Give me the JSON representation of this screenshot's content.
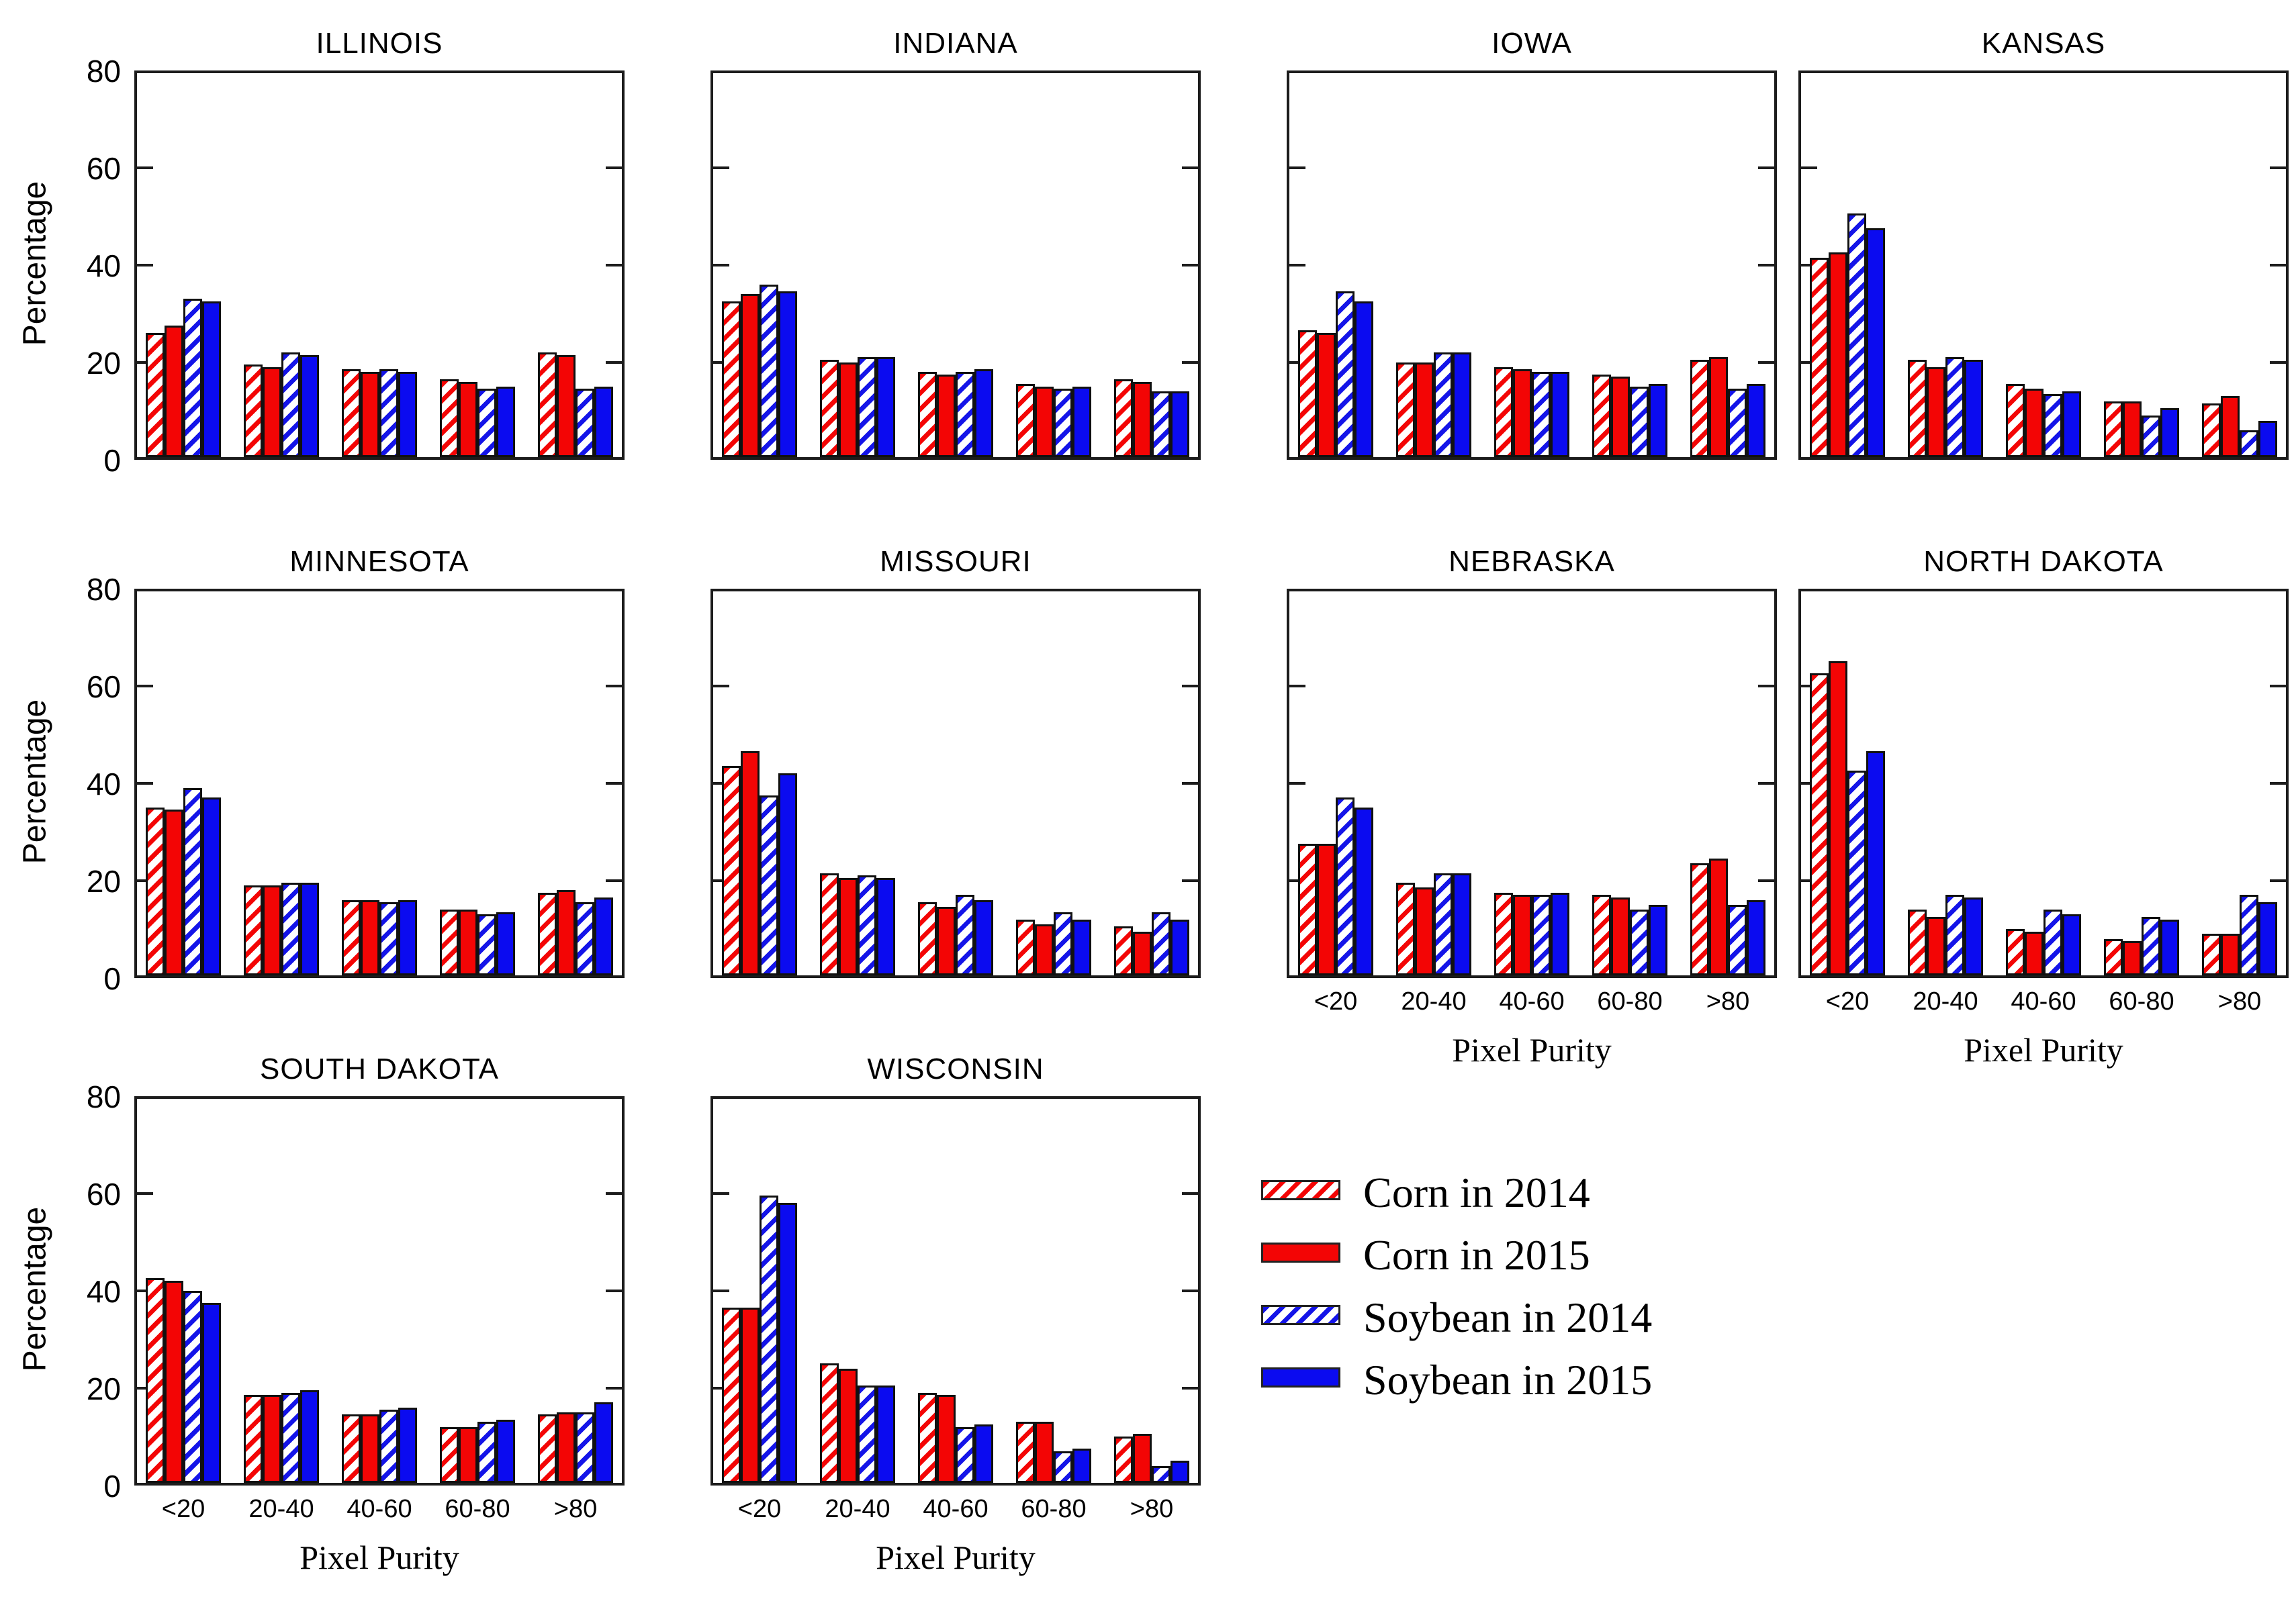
{
  "figure": {
    "ylabel": "Percentage",
    "xlabel": "Pixel Purity",
    "ytick_labels": [
      "0",
      "20",
      "40",
      "60",
      "80"
    ],
    "categories": [
      "<20",
      "20-40",
      "40-60",
      "60-80",
      ">80"
    ]
  },
  "legend": {
    "entries": [
      {
        "label": "Corn in 2014",
        "style": "hatch-red"
      },
      {
        "label": "Corn in 2015",
        "style": "solid-red"
      },
      {
        "label": "Soybean in 2014",
        "style": "hatch-blue"
      },
      {
        "label": "Soybean in 2015",
        "style": "solid-blue"
      }
    ]
  },
  "theme": {
    "corn_color": "#f30505",
    "soybean_color": "#0b0bf0",
    "bar_edge": "#111111",
    "hatch_background": "#ffffff"
  },
  "chart_data": [
    {
      "type": "bar",
      "title": "ILLINOIS",
      "ylim": [
        0,
        80
      ],
      "yticks": [
        0,
        20,
        40,
        60,
        80
      ],
      "categories": [
        "<20",
        "20-40",
        "40-60",
        "60-80",
        ">80"
      ],
      "series": [
        {
          "name": "Corn in 2014",
          "values": [
            25.5,
            19,
            18,
            16,
            21.5
          ]
        },
        {
          "name": "Corn in 2015",
          "values": [
            27,
            18.5,
            17.5,
            15.5,
            21
          ]
        },
        {
          "name": "Soybean in 2014",
          "values": [
            32.5,
            21.5,
            18,
            14,
            14
          ]
        },
        {
          "name": "Soybean in 2015",
          "values": [
            32,
            21,
            17.5,
            14.5,
            14.5
          ]
        }
      ]
    },
    {
      "type": "bar",
      "title": "INDIANA",
      "ylim": [
        0,
        80
      ],
      "yticks": [
        0,
        20,
        40,
        60,
        80
      ],
      "categories": [
        "<20",
        "20-40",
        "40-60",
        "60-80",
        ">80"
      ],
      "series": [
        {
          "name": "Corn in 2014",
          "values": [
            32,
            20,
            17.5,
            15,
            16
          ]
        },
        {
          "name": "Corn in 2015",
          "values": [
            33.5,
            19.5,
            17,
            14.5,
            15.5
          ]
        },
        {
          "name": "Soybean in 2014",
          "values": [
            35.5,
            20.5,
            17.5,
            14,
            13.5
          ]
        },
        {
          "name": "Soybean in 2015",
          "values": [
            34,
            20.5,
            18,
            14.5,
            13.5
          ]
        }
      ]
    },
    {
      "type": "bar",
      "title": "IOWA",
      "ylim": [
        0,
        80
      ],
      "yticks": [
        0,
        20,
        40,
        60,
        80
      ],
      "categories": [
        "<20",
        "20-40",
        "40-60",
        "60-80",
        ">80"
      ],
      "series": [
        {
          "name": "Corn in 2014",
          "values": [
            26,
            19.5,
            18.5,
            17,
            20
          ]
        },
        {
          "name": "Corn in 2015",
          "values": [
            25.5,
            19.5,
            18,
            16.5,
            20.5
          ]
        },
        {
          "name": "Soybean in 2014",
          "values": [
            34,
            21.5,
            17.5,
            14.5,
            14
          ]
        },
        {
          "name": "Soybean in 2015",
          "values": [
            32,
            21.5,
            17.5,
            15,
            15
          ]
        }
      ]
    },
    {
      "type": "bar",
      "title": "KANSAS",
      "ylim": [
        0,
        80
      ],
      "yticks": [
        0,
        20,
        40,
        60,
        80
      ],
      "categories": [
        "<20",
        "20-40",
        "40-60",
        "60-80",
        ">80"
      ],
      "series": [
        {
          "name": "Corn in 2014",
          "values": [
            41,
            20,
            15,
            11.5,
            11
          ]
        },
        {
          "name": "Corn in 2015",
          "values": [
            42,
            18.5,
            14,
            11.5,
            12.5
          ]
        },
        {
          "name": "Soybean in 2014",
          "values": [
            50,
            20.5,
            13,
            8.5,
            5.5
          ]
        },
        {
          "name": "Soybean in 2015",
          "values": [
            47,
            20,
            13.5,
            10,
            7.5
          ]
        }
      ]
    },
    {
      "type": "bar",
      "title": "MINNESOTA",
      "ylim": [
        0,
        80
      ],
      "yticks": [
        0,
        20,
        40,
        60,
        80
      ],
      "categories": [
        "<20",
        "20-40",
        "40-60",
        "60-80",
        ">80"
      ],
      "series": [
        {
          "name": "Corn in 2014",
          "values": [
            34.5,
            18.5,
            15.5,
            13.5,
            17
          ]
        },
        {
          "name": "Corn in 2015",
          "values": [
            34,
            18.5,
            15.5,
            13.5,
            17.5
          ]
        },
        {
          "name": "Soybean in 2014",
          "values": [
            38.5,
            19,
            15,
            12.5,
            15
          ]
        },
        {
          "name": "Soybean in 2015",
          "values": [
            36.5,
            19,
            15.5,
            13,
            16
          ]
        }
      ]
    },
    {
      "type": "bar",
      "title": "MISSOURI",
      "ylim": [
        0,
        80
      ],
      "yticks": [
        0,
        20,
        40,
        60,
        80
      ],
      "categories": [
        "<20",
        "20-40",
        "40-60",
        "60-80",
        ">80"
      ],
      "series": [
        {
          "name": "Corn in 2014",
          "values": [
            43,
            21,
            15,
            11.5,
            10
          ]
        },
        {
          "name": "Corn in 2015",
          "values": [
            46,
            20,
            14,
            10.5,
            9
          ]
        },
        {
          "name": "Soybean in 2014",
          "values": [
            37,
            20.5,
            16.5,
            13,
            13
          ]
        },
        {
          "name": "Soybean in 2015",
          "values": [
            41.5,
            20,
            15.5,
            11.5,
            11.5
          ]
        }
      ]
    },
    {
      "type": "bar",
      "title": "NEBRASKA",
      "ylim": [
        0,
        80
      ],
      "yticks": [
        0,
        20,
        40,
        60,
        80
      ],
      "categories": [
        "<20",
        "20-40",
        "40-60",
        "60-80",
        ">80"
      ],
      "series": [
        {
          "name": "Corn in 2014",
          "values": [
            27,
            19,
            17,
            16.5,
            23
          ]
        },
        {
          "name": "Corn in 2015",
          "values": [
            27,
            18,
            16.5,
            16,
            24
          ]
        },
        {
          "name": "Soybean in 2014",
          "values": [
            36.5,
            21,
            16.5,
            13.5,
            14.5
          ]
        },
        {
          "name": "Soybean in 2015",
          "values": [
            34.5,
            21,
            17,
            14.5,
            15.5
          ]
        }
      ]
    },
    {
      "type": "bar",
      "title": "NORTH DAKOTA",
      "ylim": [
        0,
        80
      ],
      "yticks": [
        0,
        20,
        40,
        60,
        80
      ],
      "categories": [
        "<20",
        "20-40",
        "40-60",
        "60-80",
        ">80"
      ],
      "series": [
        {
          "name": "Corn in 2014",
          "values": [
            62,
            13.5,
            9.5,
            7.5,
            8.5
          ]
        },
        {
          "name": "Corn in 2015",
          "values": [
            64.5,
            12,
            9,
            7,
            8.5
          ]
        },
        {
          "name": "Soybean in 2014",
          "values": [
            42,
            16.5,
            13.5,
            12,
            16.5
          ]
        },
        {
          "name": "Soybean in 2015",
          "values": [
            46,
            16,
            12.5,
            11.5,
            15
          ]
        }
      ]
    },
    {
      "type": "bar",
      "title": "SOUTH DAKOTA",
      "ylim": [
        0,
        80
      ],
      "yticks": [
        0,
        20,
        40,
        60,
        80
      ],
      "categories": [
        "<20",
        "20-40",
        "40-60",
        "60-80",
        ">80"
      ],
      "series": [
        {
          "name": "Corn in 2014",
          "values": [
            42,
            18,
            14,
            11.5,
            14
          ]
        },
        {
          "name": "Corn in 2015",
          "values": [
            41.5,
            18,
            14,
            11.5,
            14.5
          ]
        },
        {
          "name": "Soybean in 2014",
          "values": [
            39.5,
            18.5,
            15,
            12.5,
            14.5
          ]
        },
        {
          "name": "Soybean in 2015",
          "values": [
            37,
            19,
            15.5,
            13,
            16.5
          ]
        }
      ]
    },
    {
      "type": "bar",
      "title": "WISCONSIN",
      "ylim": [
        0,
        80
      ],
      "yticks": [
        0,
        20,
        40,
        60,
        80
      ],
      "categories": [
        "<20",
        "20-40",
        "40-60",
        "60-80",
        ">80"
      ],
      "series": [
        {
          "name": "Corn in 2014",
          "values": [
            36,
            24.5,
            18.5,
            12.5,
            9.5
          ]
        },
        {
          "name": "Corn in 2015",
          "values": [
            36,
            23.5,
            18,
            12.5,
            10
          ]
        },
        {
          "name": "Soybean in 2014",
          "values": [
            59,
            20,
            11.5,
            6.5,
            3.5
          ]
        },
        {
          "name": "Soybean in 2015",
          "values": [
            57.5,
            20,
            12,
            7,
            4.5
          ]
        }
      ]
    }
  ]
}
